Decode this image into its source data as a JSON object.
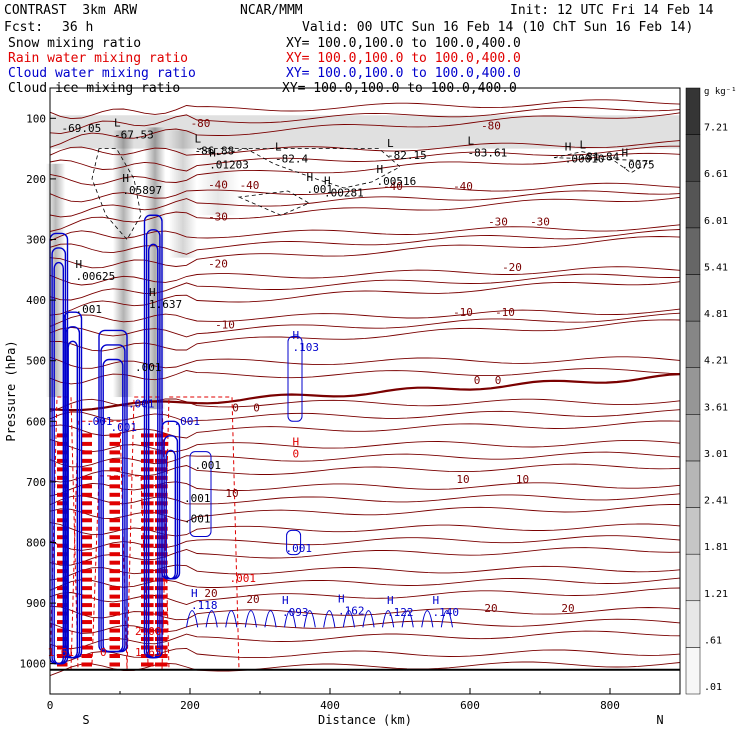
{
  "header": {
    "model": "CONTRAST  3km ARW",
    "org": "NCAR/MMM",
    "init": "Init: 12 UTC Fri 14 Feb 14",
    "fcst_label": "Fcst:",
    "fcst_value": "36 h",
    "valid": "Valid: 00 UTC Sun 16 Feb 14 (10 ChT Sun 16 Feb 14)",
    "fields": [
      {
        "name": "Snow mixing ratio",
        "xy": "XY= 100.0,100.0 to 100.0,400.0",
        "color": "#000000"
      },
      {
        "name": "Rain water mixing ratio",
        "xy": "XY= 100.0,100.0 to 100.0,400.0",
        "color": "#e00000"
      },
      {
        "name": "Cloud water mixing ratio",
        "xy": "XY= 100.0,100.0 to 100.0,400.0",
        "color": "#0000cc"
      },
      {
        "name": "Cloud ice mixing ratio",
        "xy": "XY= 100.0,100.0 to 100.0,400.0",
        "color": "#000000"
      }
    ]
  },
  "colors": {
    "temperature": "#7a0000",
    "rain": "#e00000",
    "cloud_water": "#0000cc",
    "cloud_ice": "#000000"
  },
  "chart_data": {
    "type": "heatmap",
    "xlabel": "Distance (km)",
    "ylabel": "Pressure (hPa)",
    "xlim": [
      0,
      900
    ],
    "ylim": [
      1050,
      50
    ],
    "x_ticks": [
      0,
      200,
      400,
      600,
      800
    ],
    "y_ticks": [
      100,
      200,
      300,
      400,
      500,
      600,
      700,
      800,
      900,
      1000
    ],
    "x_end_labels": {
      "left": "S",
      "right": "N"
    },
    "colorbar": {
      "unit": "g kg⁻¹",
      "levels": [
        ".01",
        ".61",
        "1.21",
        "1.81",
        "2.41",
        "3.01",
        "3.61",
        "4.21",
        "4.81",
        "5.41",
        "6.01",
        "6.61",
        "7.21"
      ]
    },
    "temperature_contour_labels": [
      {
        "x": 215,
        "p": 108,
        "text": "-80"
      },
      {
        "x": 630,
        "p": 112,
        "text": "-80"
      },
      {
        "x": 590,
        "p": 212,
        "text": "-40"
      },
      {
        "x": 285,
        "p": 210,
        "text": "-40"
      },
      {
        "x": 240,
        "p": 209,
        "text": "-40"
      },
      {
        "x": 490,
        "p": 212,
        "text": "-40"
      },
      {
        "x": 240,
        "p": 262,
        "text": "-30"
      },
      {
        "x": 640,
        "p": 270,
        "text": "-30"
      },
      {
        "x": 700,
        "p": 270,
        "text": "-30"
      },
      {
        "x": 240,
        "p": 340,
        "text": "-20"
      },
      {
        "x": 660,
        "p": 345,
        "text": "-20"
      },
      {
        "x": 250,
        "p": 440,
        "text": "-10"
      },
      {
        "x": 590,
        "p": 420,
        "text": "-10"
      },
      {
        "x": 650,
        "p": 420,
        "text": "-10"
      },
      {
        "x": 610,
        "p": 532,
        "text": "0"
      },
      {
        "x": 640,
        "p": 532,
        "text": "0"
      },
      {
        "x": 265,
        "p": 577,
        "text": "0"
      },
      {
        "x": 295,
        "p": 577,
        "text": "0"
      },
      {
        "x": 260,
        "p": 718,
        "text": "10"
      },
      {
        "x": 590,
        "p": 695,
        "text": "10"
      },
      {
        "x": 675,
        "p": 695,
        "text": "10"
      },
      {
        "x": 230,
        "p": 883,
        "text": "20"
      },
      {
        "x": 290,
        "p": 893,
        "text": "20"
      },
      {
        "x": 630,
        "p": 908,
        "text": "20"
      },
      {
        "x": 740,
        "p": 908,
        "text": "20"
      }
    ],
    "extrema_labels": [
      {
        "x": 25,
        "p": 118,
        "kind": "",
        "value": "-69.05"
      },
      {
        "x": 100,
        "p": 128,
        "kind": "L",
        "value": "-67.53"
      },
      {
        "x": 215,
        "p": 155,
        "kind": "L",
        "value": "-86.88"
      },
      {
        "x": 330,
        "p": 168,
        "kind": "L",
        "value": "-82.4"
      },
      {
        "x": 490,
        "p": 162,
        "kind": "L",
        "value": "-82.15"
      },
      {
        "x": 605,
        "p": 158,
        "kind": "L",
        "value": "-83.61"
      },
      {
        "x": 765,
        "p": 165,
        "kind": "L",
        "value": "-81.84"
      },
      {
        "x": 236,
        "p": 178,
        "kind": "H",
        "value": ".01203"
      },
      {
        "x": 744,
        "p": 168,
        "kind": "H",
        "value": ".00010"
      },
      {
        "x": 825,
        "p": 178,
        "kind": "H",
        "value": ".0075"
      },
      {
        "x": 475,
        "p": 205,
        "kind": "H",
        "value": ".00516"
      },
      {
        "x": 375,
        "p": 218,
        "kind": "H",
        "value": ".001"
      },
      {
        "x": 400,
        "p": 224,
        "kind": "H",
        "value": ".00281"
      },
      {
        "x": 112,
        "p": 220,
        "kind": "H",
        "value": ".05897"
      },
      {
        "x": 45,
        "p": 362,
        "kind": "H",
        "value": ".00625"
      },
      {
        "x": 45,
        "p": 416,
        "kind": "",
        "value": ".001"
      },
      {
        "x": 150,
        "p": 408,
        "kind": "H",
        "value": "1.637"
      },
      {
        "x": 355,
        "p": 479,
        "kind": "H",
        "value": ".103"
      },
      {
        "x": 355,
        "p": 655,
        "kind": "H",
        "value": "0"
      },
      {
        "x": 215,
        "p": 674,
        "kind": "",
        "value": ".001"
      },
      {
        "x": 200,
        "p": 728,
        "kind": "",
        "value": ".001"
      },
      {
        "x": 200,
        "p": 762,
        "kind": "",
        "value": ".001"
      },
      {
        "x": 345,
        "p": 811,
        "kind": "",
        "value": ".001"
      },
      {
        "x": 265,
        "p": 860,
        "kind": "",
        "value": ".001"
      },
      {
        "x": 210,
        "p": 905,
        "kind": "H",
        "value": ".118"
      },
      {
        "x": 340,
        "p": 916,
        "kind": "H",
        "value": ".093"
      },
      {
        "x": 420,
        "p": 914,
        "kind": "H",
        "value": ".162"
      },
      {
        "x": 490,
        "p": 916,
        "kind": "H",
        "value": ".122"
      },
      {
        "x": 555,
        "p": 916,
        "kind": "H",
        "value": ".140"
      },
      {
        "x": 130,
        "p": 948,
        "kind": "",
        "value": "2.00"
      },
      {
        "x": 130,
        "p": 982,
        "kind": "",
        "value": "1.651"
      },
      {
        "x": 80,
        "p": 982,
        "kind": "",
        "value": "0"
      },
      {
        "x": 5,
        "p": 982,
        "kind": "",
        "value": "1.61"
      },
      {
        "x": 120,
        "p": 572,
        "kind": "",
        "value": ".001"
      },
      {
        "x": 60,
        "p": 601,
        "kind": "",
        "value": ".001"
      },
      {
        "x": 95,
        "p": 611,
        "kind": "",
        "value": ".001"
      },
      {
        "x": 185,
        "p": 601,
        "kind": "",
        "value": ".001"
      },
      {
        "x": 130,
        "p": 512,
        "kind": "",
        "value": ".001"
      }
    ]
  }
}
